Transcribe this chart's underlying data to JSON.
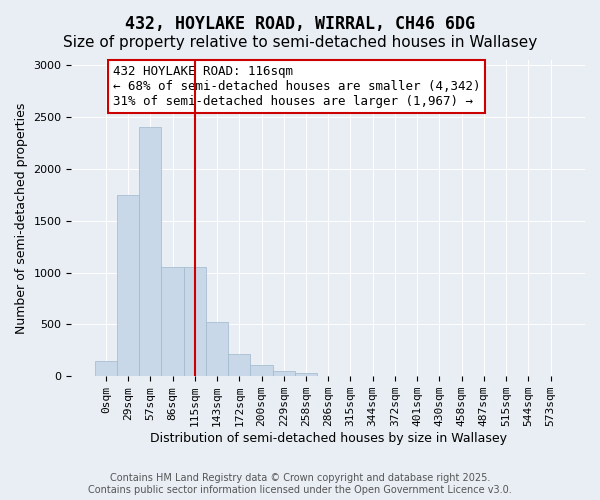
{
  "title_line1": "432, HOYLAKE ROAD, WIRRAL, CH46 6DG",
  "title_line2": "Size of property relative to semi-detached houses in Wallasey",
  "xlabel": "Distribution of semi-detached houses by size in Wallasey",
  "ylabel": "Number of semi-detached properties",
  "bin_labels": [
    "0sqm",
    "29sqm",
    "57sqm",
    "86sqm",
    "115sqm",
    "143sqm",
    "172sqm",
    "200sqm",
    "229sqm",
    "258sqm",
    "286sqm",
    "315sqm",
    "344sqm",
    "372sqm",
    "401sqm",
    "430sqm",
    "458sqm",
    "487sqm",
    "515sqm",
    "544sqm",
    "573sqm"
  ],
  "bar_values": [
    150,
    1750,
    2400,
    1050,
    1050,
    520,
    210,
    110,
    50,
    30,
    0,
    0,
    0,
    0,
    0,
    0,
    0,
    0,
    0,
    0,
    0
  ],
  "bar_color": "#c8d8e8",
  "bar_edge_color": "#a0b8cc",
  "vline_x": 4,
  "vline_color": "#cc0000",
  "annotation_text": "432 HOYLAKE ROAD: 116sqm\n← 68% of semi-detached houses are smaller (4,342)\n31% of semi-detached houses are larger (1,967) →",
  "annotation_box_color": "#ffffff",
  "annotation_edge_color": "#cc0000",
  "ylim": [
    0,
    3050
  ],
  "yticks": [
    0,
    500,
    1000,
    1500,
    2000,
    2500,
    3000
  ],
  "background_color": "#e8eef4",
  "plot_bg_color": "#e8eef4",
  "footer_text": "Contains HM Land Registry data © Crown copyright and database right 2025.\nContains public sector information licensed under the Open Government Licence v3.0.",
  "title_fontsize": 12,
  "subtitle_fontsize": 11,
  "tick_fontsize": 8,
  "annotation_fontsize": 9
}
